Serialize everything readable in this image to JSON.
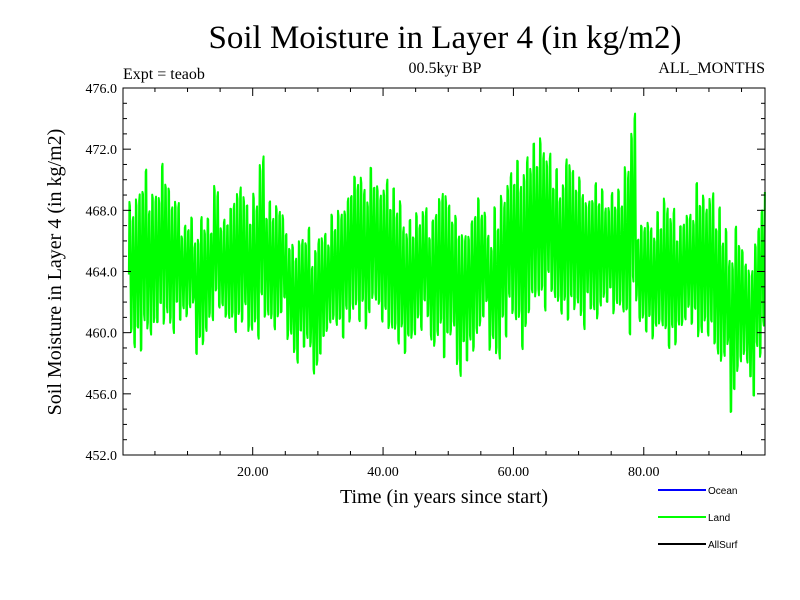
{
  "chart_data": {
    "type": "line",
    "title": "Soil Moisture in Layer 4 (in kg/m2)",
    "subtitle_left": "Expt = teaob",
    "subtitle_center": "00.5kyr BP",
    "subtitle_right": "ALL_MONTHS",
    "xlabel": "Time (in years since start)",
    "ylabel": "Soil Moisture in Layer 4 (in kg/m2)",
    "xlim": [
      0.1,
      98.6
    ],
    "ylim": [
      452.0,
      476.0
    ],
    "x_ticks": [
      20,
      40,
      60,
      80
    ],
    "x_tick_labels": [
      "20.00",
      "40.00",
      "60.00",
      "80.00"
    ],
    "y_ticks": [
      452,
      456,
      460,
      464,
      468,
      472,
      476
    ],
    "y_tick_labels": [
      "452.0",
      "456.0",
      "460.0",
      "464.0",
      "468.0",
      "472.0",
      "476.0"
    ],
    "legend": [
      {
        "name": "Ocean",
        "color": "#0000ff"
      },
      {
        "name": "Land",
        "color": "#00ff00"
      },
      {
        "name": "AllSurf",
        "color": "#000000"
      }
    ],
    "series": [
      {
        "name": "Land",
        "color": "#00ff00",
        "samples_per_year": 12,
        "seasonal_amplitude": 3.8,
        "annual_extremes": [
          [
            458.2,
            469.4
          ],
          [
            458.0,
            470.3
          ],
          [
            459.1,
            471.5
          ],
          [
            459.0,
            469.8
          ],
          [
            460.0,
            470.0
          ],
          [
            459.5,
            471.9
          ],
          [
            459.0,
            470.2
          ],
          [
            460.2,
            469.6
          ],
          [
            460.5,
            467.5
          ],
          [
            461.0,
            468.0
          ],
          [
            458.0,
            467.0
          ],
          [
            458.5,
            468.3
          ],
          [
            460.0,
            468.0
          ],
          [
            461.0,
            470.5
          ],
          [
            460.5,
            468.0
          ],
          [
            460.0,
            468.7
          ],
          [
            459.3,
            470.0
          ],
          [
            460.0,
            470.4
          ],
          [
            459.0,
            469.0
          ],
          [
            458.8,
            470.0
          ],
          [
            460.2,
            472.7
          ],
          [
            460.0,
            469.2
          ],
          [
            459.5,
            469.0
          ],
          [
            460.8,
            468.7
          ],
          [
            458.8,
            467.0
          ],
          [
            457.3,
            466.4
          ],
          [
            458.5,
            467.0
          ],
          [
            458.3,
            467.5
          ],
          [
            456.5,
            466.0
          ],
          [
            458.0,
            467.2
          ],
          [
            459.5,
            467.0
          ],
          [
            459.7,
            468.3
          ],
          [
            459.0,
            469.0
          ],
          [
            460.0,
            469.5
          ],
          [
            460.5,
            470.9
          ],
          [
            460.0,
            471.2
          ],
          [
            459.5,
            470.2
          ],
          [
            461.0,
            471.5
          ],
          [
            460.0,
            470.5
          ],
          [
            459.5,
            471.0
          ],
          [
            459.0,
            470.2
          ],
          [
            458.5,
            469.5
          ],
          [
            458.0,
            467.8
          ],
          [
            458.7,
            468.0
          ],
          [
            459.5,
            468.5
          ],
          [
            460.5,
            469.0
          ],
          [
            458.2,
            468.0
          ],
          [
            459.0,
            469.5
          ],
          [
            457.5,
            470.5
          ],
          [
            459.0,
            469.0
          ],
          [
            456.1,
            468.5
          ],
          [
            457.5,
            467.5
          ],
          [
            458.0,
            468.0
          ],
          [
            459.0,
            469.5
          ],
          [
            460.5,
            468.7
          ],
          [
            458.2,
            467.0
          ],
          [
            457.1,
            469.0
          ],
          [
            459.0,
            470.0
          ],
          [
            460.5,
            471.3
          ],
          [
            459.5,
            472.1
          ],
          [
            458.0,
            471.5
          ],
          [
            460.5,
            472.5
          ],
          [
            461.0,
            473.2
          ],
          [
            460.5,
            473.8
          ],
          [
            462.0,
            472.7
          ],
          [
            461.0,
            471.4
          ],
          [
            460.5,
            470.4
          ],
          [
            460.0,
            472.6
          ],
          [
            460.5,
            471.3
          ],
          [
            459.3,
            471.0
          ],
          [
            461.0,
            469.5
          ],
          [
            460.0,
            470.5
          ],
          [
            461.0,
            470.0
          ],
          [
            461.5,
            469.0
          ],
          [
            460.5,
            469.8
          ],
          [
            460.5,
            470.0
          ],
          [
            459.0,
            472.2
          ],
          [
            461.0,
            475.4
          ],
          [
            460.0,
            467.5
          ],
          [
            459.5,
            468.0
          ],
          [
            459.0,
            467.5
          ],
          [
            459.5,
            468.5
          ],
          [
            458.2,
            469.8
          ],
          [
            458.5,
            469.0
          ],
          [
            459.6,
            467.5
          ],
          [
            460.3,
            468.3
          ],
          [
            460.0,
            468.5
          ],
          [
            458.5,
            470.6
          ],
          [
            459.0,
            469.8
          ],
          [
            458.5,
            470.3
          ],
          [
            457.0,
            469.0
          ],
          [
            457.7,
            467.5
          ],
          [
            454.0,
            466.0
          ],
          [
            456.5,
            467.7
          ],
          [
            457.3,
            466.0
          ],
          [
            455.2,
            465.2
          ],
          [
            457.6,
            467.5
          ],
          [
            459.5,
            469.9
          ],
          [
            460.5,
            467.5
          ]
        ]
      }
    ]
  }
}
